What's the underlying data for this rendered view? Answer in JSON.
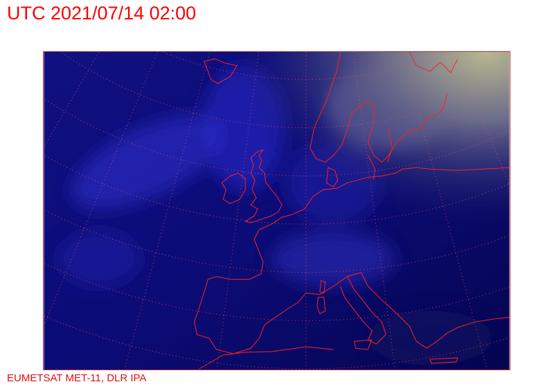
{
  "header": {
    "title": "UTC 2021/07/14 02:00"
  },
  "footer": {
    "credit": "EUMETSAT MET-11, DLR IPA"
  },
  "map": {
    "imagery": "satellite-night-composite",
    "colors": {
      "ocean": "#0a0a6a",
      "clouds": "#3a3ae0",
      "coastline": "#ff2020",
      "graticule": "#ff4040",
      "text": "#ff0000"
    }
  }
}
